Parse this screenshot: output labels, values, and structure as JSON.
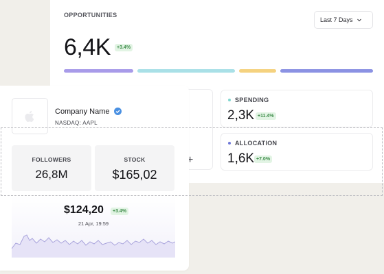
{
  "opportunities": {
    "title": "OPPORTUNITIES",
    "period": "Last 7 Days",
    "value": "6,4K",
    "change": "+3.4%",
    "bar_colors": [
      "#a89be9",
      "#a9e0e7",
      "#f5d27f",
      "#8b92e3"
    ]
  },
  "metrics": [
    {
      "label": "SPENDING",
      "value": "2,3K",
      "change": "+11.4%",
      "dot_color": "#7fd6cf"
    },
    {
      "label": "ALLOCATION",
      "value": "1,6K",
      "change": "+7.0%",
      "dot_color": "#6f79d8"
    }
  ],
  "company": {
    "name": "Company Name",
    "ticker": "NASDAQ: AAPL",
    "logo_icon": "apple-icon",
    "verified_icon": "verified-badge-icon",
    "stats": [
      {
        "label": "FOLLOWERS",
        "value": "26,8M"
      },
      {
        "label": "STOCK",
        "value": "$165,02"
      }
    ],
    "price": {
      "value": "$124,20",
      "change": "+3.4%",
      "date": "21 Apr, 19:59"
    }
  },
  "colors": {
    "accent_green_text": "#3f8d4b",
    "accent_green_bg": "#e2f4e4",
    "verified_blue": "#4a90e2",
    "sparkline_stroke": "#a9a4dc"
  }
}
